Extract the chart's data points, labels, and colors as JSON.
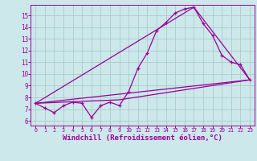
{
  "background_color": "#cce8ea",
  "grid_color": "#aacccc",
  "line_color": "#990099",
  "xlabel": "Windchill (Refroidissement éolien,°C)",
  "xlabel_fontsize": 6.5,
  "ylabel_ticks": [
    6,
    7,
    8,
    9,
    10,
    11,
    12,
    13,
    14,
    15
  ],
  "xlabel_ticks": [
    0,
    1,
    2,
    3,
    4,
    5,
    6,
    7,
    8,
    9,
    10,
    11,
    12,
    13,
    14,
    15,
    16,
    17,
    18,
    19,
    20,
    21,
    22,
    23
  ],
  "xlim": [
    -0.5,
    23.5
  ],
  "ylim": [
    5.6,
    15.9
  ],
  "line1_x": [
    0,
    1,
    2,
    3,
    4,
    5,
    6,
    7,
    8,
    9,
    10,
    11,
    12,
    13,
    14,
    15,
    16,
    17,
    18,
    19,
    20,
    21,
    22,
    23
  ],
  "line1_y": [
    7.5,
    7.1,
    6.7,
    7.3,
    7.6,
    7.5,
    6.3,
    7.3,
    7.6,
    7.3,
    8.5,
    10.5,
    11.8,
    13.7,
    14.4,
    15.2,
    15.55,
    15.7,
    14.3,
    13.3,
    11.6,
    11.0,
    10.8,
    9.5
  ],
  "line2_x": [
    0,
    23
  ],
  "line2_y": [
    7.5,
    9.5
  ],
  "line3_x": [
    0,
    9,
    23
  ],
  "line3_y": [
    7.5,
    7.8,
    9.5
  ],
  "line4_x": [
    0,
    17,
    23
  ],
  "line4_y": [
    7.5,
    15.7,
    9.5
  ]
}
